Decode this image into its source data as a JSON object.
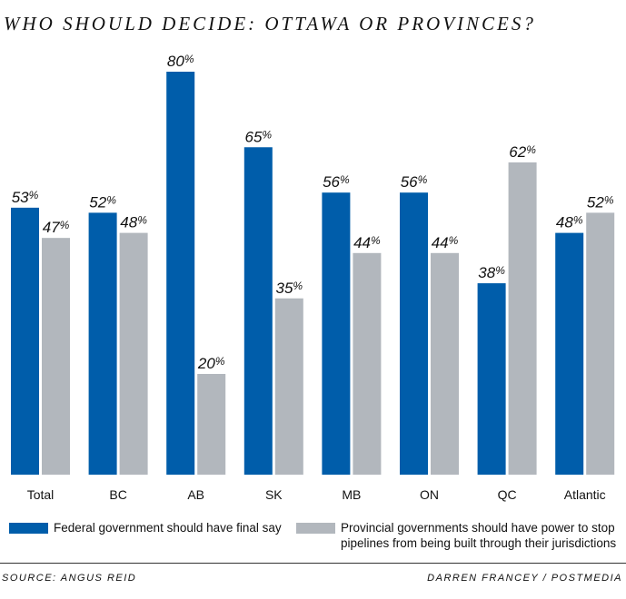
{
  "chart_data": {
    "type": "bar",
    "title": "WHO SHOULD DECIDE: OTTAWA OR PROVINCES?",
    "xlabel": "",
    "ylabel": "",
    "ylim": [
      0,
      80
    ],
    "grid": false,
    "legend_position": "bottom",
    "categories": [
      "Total",
      "BC",
      "AB",
      "SK",
      "MB",
      "ON",
      "QC",
      "Atlantic"
    ],
    "series": [
      {
        "name": "Federal government should have final say",
        "color": "#005daa",
        "values": [
          53,
          52,
          80,
          65,
          56,
          56,
          38,
          48
        ]
      },
      {
        "name": "Provincial governments should have power to stop pipelines from being built through their jurisdictions",
        "color": "#b2b7bd",
        "values": [
          47,
          48,
          20,
          35,
          44,
          44,
          62,
          52
        ]
      }
    ],
    "value_suffix": "%"
  },
  "legend": {
    "federal": "Federal government should have final say",
    "provincial": "Provincial governments should have power to stop pipelines from being built through their jurisdictions"
  },
  "footer": {
    "source": "SOURCE: ANGUS REID",
    "credit": "DARREN FRANCEY / POSTMEDIA"
  }
}
